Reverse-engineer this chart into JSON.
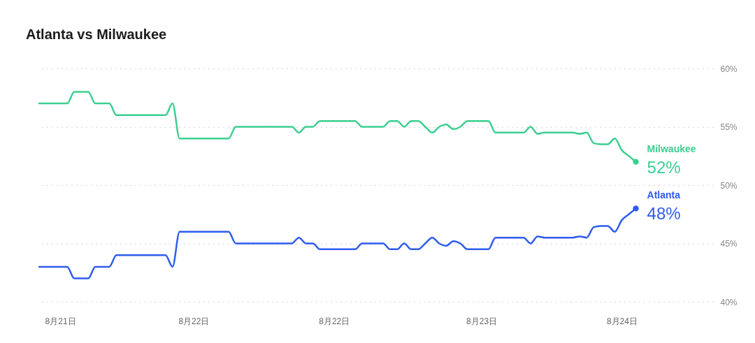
{
  "chart_data": {
    "type": "line",
    "title": "Atlanta vs Milwaukee",
    "categories": [
      null,
      null,
      null,
      "8月21日",
      null,
      null,
      null,
      null,
      null,
      null,
      null,
      null,
      null,
      null,
      null,
      null,
      null,
      null,
      null,
      null,
      null,
      null,
      "8月22日",
      null,
      null,
      null,
      null,
      null,
      null,
      null,
      null,
      null,
      null,
      null,
      null,
      null,
      null,
      null,
      null,
      null,
      null,
      null,
      "8月22日",
      null,
      null,
      null,
      null,
      null,
      null,
      null,
      null,
      null,
      null,
      null,
      null,
      null,
      null,
      null,
      null,
      null,
      null,
      null,
      null,
      "8月23日",
      null,
      null,
      null,
      null,
      null,
      null,
      null,
      null,
      null,
      null,
      null,
      null,
      null,
      null,
      null,
      null,
      null,
      null,
      null,
      "8月24日",
      null,
      null,
      null,
      null,
      null,
      null,
      null,
      null,
      null,
      null,
      null,
      null,
      null
    ],
    "series": [
      {
        "name": "Milwaukee",
        "color": "#3ccf91",
        "values": [
          57,
          57,
          57,
          57,
          57,
          58,
          58,
          58,
          57,
          57,
          57,
          56,
          56,
          56,
          56,
          56,
          56,
          56,
          56,
          57,
          54,
          54,
          54,
          54,
          54,
          54,
          54,
          54,
          55,
          55,
          55,
          55,
          55,
          55,
          55,
          55,
          55,
          54.5,
          55,
          55,
          55.5,
          55.5,
          55.5,
          55.5,
          55.5,
          55.5,
          55,
          55,
          55,
          55,
          55.5,
          55.5,
          55,
          55.5,
          55.5,
          55,
          54.5,
          55,
          55.2,
          54.8,
          55,
          55.5,
          55.5,
          55.5,
          55.5,
          54.5,
          54.5,
          54.5,
          54.5,
          54.5,
          55,
          54.4,
          54.5,
          54.5,
          54.5,
          54.5,
          54.5,
          54.4,
          54.5,
          53.6,
          53.5,
          53.5,
          54,
          53,
          52.5,
          52,
          null,
          null,
          null,
          null,
          null,
          null,
          null,
          null,
          null,
          null,
          null
        ],
        "value_labels": [
          null,
          null,
          null,
          null,
          null,
          null,
          null,
          null,
          null,
          null,
          null,
          null,
          null,
          null,
          null,
          null,
          null,
          null,
          null,
          null,
          null,
          null,
          null,
          null,
          null,
          null,
          null,
          null,
          null,
          null,
          null,
          null,
          null,
          null,
          null,
          null,
          null,
          null,
          null,
          null,
          null,
          null,
          null,
          null,
          null,
          null,
          null,
          null,
          null,
          null,
          null,
          null,
          null,
          null,
          null,
          null,
          null,
          null,
          null,
          null,
          null,
          null,
          null,
          null,
          null,
          null,
          null,
          null,
          null,
          null,
          null,
          null,
          null,
          null,
          null,
          null,
          null,
          null,
          null,
          null,
          null,
          null,
          null,
          null,
          null,
          "52%",
          null,
          null,
          null,
          null,
          null,
          null,
          null,
          null,
          null,
          null,
          null
        ]
      },
      {
        "name": "Atlanta",
        "color": "#2e5cf0",
        "values": [
          43,
          43,
          43,
          43,
          43,
          42,
          42,
          42,
          43,
          43,
          43,
          44,
          44,
          44,
          44,
          44,
          44,
          44,
          44,
          43,
          46,
          46,
          46,
          46,
          46,
          46,
          46,
          46,
          45,
          45,
          45,
          45,
          45,
          45,
          45,
          45,
          45,
          45.5,
          45,
          45,
          44.5,
          44.5,
          44.5,
          44.5,
          44.5,
          44.5,
          45,
          45,
          45,
          45,
          44.5,
          44.5,
          45,
          44.5,
          44.5,
          45,
          45.5,
          45,
          44.8,
          45.2,
          45,
          44.5,
          44.5,
          44.5,
          44.5,
          45.5,
          45.5,
          45.5,
          45.5,
          45.5,
          45,
          45.6,
          45.5,
          45.5,
          45.5,
          45.5,
          45.5,
          45.6,
          45.5,
          46.4,
          46.5,
          46.5,
          46,
          47,
          47.5,
          48,
          null,
          null,
          null,
          null,
          null,
          null,
          null,
          null,
          null,
          null,
          null
        ],
        "value_labels": [
          null,
          null,
          null,
          null,
          null,
          null,
          null,
          null,
          null,
          null,
          null,
          null,
          null,
          null,
          null,
          null,
          null,
          null,
          null,
          null,
          null,
          null,
          null,
          null,
          null,
          null,
          null,
          null,
          null,
          null,
          null,
          null,
          null,
          null,
          null,
          null,
          null,
          null,
          null,
          null,
          null,
          null,
          null,
          null,
          null,
          null,
          null,
          null,
          null,
          null,
          null,
          null,
          null,
          null,
          null,
          null,
          null,
          null,
          null,
          null,
          null,
          null,
          null,
          null,
          null,
          null,
          null,
          null,
          null,
          null,
          null,
          null,
          null,
          null,
          null,
          null,
          null,
          null,
          null,
          null,
          null,
          null,
          null,
          null,
          null,
          "48%",
          null,
          null,
          null,
          null,
          null,
          null,
          null,
          null,
          null,
          null,
          null
        ]
      }
    ],
    "ylim": [
      40,
      60
    ],
    "yticks": [
      {
        "value": 40,
        "label": "40%"
      },
      {
        "value": 45,
        "label": "45%"
      },
      {
        "value": 50,
        "label": "50%"
      },
      {
        "value": 55,
        "label": "55%"
      },
      {
        "value": 60,
        "label": "60%"
      }
    ],
    "grid": "y"
  }
}
